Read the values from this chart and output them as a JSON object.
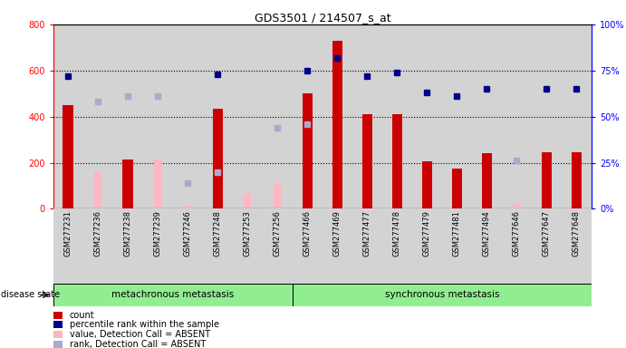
{
  "title": "GDS3501 / 214507_s_at",
  "samples": [
    "GSM277231",
    "GSM277236",
    "GSM277238",
    "GSM277239",
    "GSM277246",
    "GSM277248",
    "GSM277253",
    "GSM277256",
    "GSM277466",
    "GSM277469",
    "GSM277477",
    "GSM277478",
    "GSM277479",
    "GSM277481",
    "GSM277494",
    "GSM277646",
    "GSM277647",
    "GSM277648"
  ],
  "group1_label": "metachronous metastasis",
  "group2_label": "synchronous metastasis",
  "group1_count": 8,
  "group2_count": 10,
  "bar_values": [
    450,
    0,
    215,
    0,
    0,
    435,
    0,
    0,
    500,
    730,
    410,
    410,
    205,
    175,
    240,
    0,
    245,
    245
  ],
  "bar_absent_values": [
    0,
    160,
    0,
    215,
    15,
    0,
    65,
    110,
    0,
    0,
    0,
    0,
    0,
    0,
    0,
    20,
    0,
    0
  ],
  "rank_present_pct": [
    72,
    null,
    null,
    null,
    null,
    73,
    null,
    null,
    75,
    82,
    72,
    74,
    63,
    61,
    65,
    null,
    65,
    65
  ],
  "rank_absent_pct": [
    null,
    58,
    61,
    61,
    14,
    20,
    null,
    44,
    46,
    null,
    null,
    null,
    null,
    null,
    null,
    26,
    null,
    null
  ],
  "bar_color": "#cc0000",
  "bar_absent_color": "#ffb6c1",
  "rank_present_color": "#00008b",
  "rank_absent_color": "#aaaacc",
  "ylim_left": [
    0,
    800
  ],
  "ylim_right": [
    0,
    100
  ],
  "yticks_left": [
    0,
    200,
    400,
    600,
    800
  ],
  "yticks_right": [
    0,
    25,
    50,
    75,
    100
  ],
  "ytick_labels_right": [
    "0%",
    "25%",
    "50%",
    "75%",
    "100%"
  ],
  "group_bg_color": "#90ee90",
  "sample_bg_color": "#d3d3d3",
  "white_bg": "#ffffff",
  "legend_items": [
    {
      "label": "count",
      "color": "#cc0000"
    },
    {
      "label": "percentile rank within the sample",
      "color": "#00008b"
    },
    {
      "label": "value, Detection Call = ABSENT",
      "color": "#ffb6c1"
    },
    {
      "label": "rank, Detection Call = ABSENT",
      "color": "#aaaacc"
    }
  ]
}
